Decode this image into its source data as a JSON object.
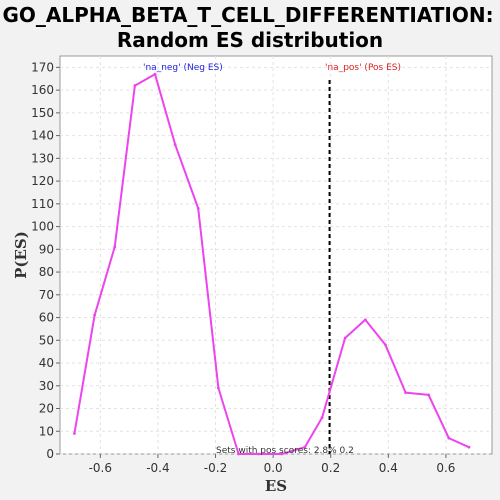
{
  "chart_data": {
    "type": "line",
    "title": "GO_ALPHA_BETA_T_CELL_DIFFERENTIATION:",
    "subtitle": "Random ES distribution",
    "xlabel": "ES",
    "ylabel": "P(ES)",
    "xlim": [
      -0.74,
      0.76
    ],
    "ylim": [
      0,
      175
    ],
    "xticks": [
      -0.6,
      -0.4,
      -0.2,
      0.0,
      0.2,
      0.4,
      0.6
    ],
    "xtick_labels": [
      "-0.6",
      "-0.4",
      "-0.2",
      "0.0",
      "0.2",
      "0.4",
      "0.6"
    ],
    "yticks": [
      0,
      10,
      20,
      30,
      40,
      50,
      60,
      70,
      80,
      90,
      100,
      110,
      120,
      130,
      140,
      150,
      160,
      170
    ],
    "ytick_labels": [
      "0",
      "10",
      "20",
      "30",
      "40",
      "50",
      "60",
      "70",
      "80",
      "90",
      "100",
      "110",
      "120",
      "130",
      "140",
      "150",
      "160",
      "170"
    ],
    "grid": true,
    "series": [
      {
        "color": "#ee44ee",
        "x": [
          -0.69,
          -0.62,
          -0.55,
          -0.48,
          -0.41,
          -0.34,
          -0.26,
          -0.19,
          -0.12,
          -0.05,
          0.03,
          0.11,
          0.17,
          0.25,
          0.32,
          0.39,
          0.46,
          0.54,
          0.61,
          0.68
        ],
        "y": [
          9,
          61,
          91,
          162,
          167,
          136,
          108,
          29,
          0,
          0,
          0,
          3,
          16,
          51,
          59,
          48,
          27,
          26,
          7,
          3
        ]
      }
    ],
    "vline": {
      "x": 0.196,
      "style": "dashed",
      "color": "#000000"
    },
    "annotations": [
      {
        "text": "'na_neg' (Neg ES)",
        "color": "#2222dd"
      },
      {
        "text": "'na_pos' (Pos ES)",
        "color": "#dd2222"
      },
      {
        "text": "Sets with pos scores: 2.8% 0.2",
        "color": "#333333"
      }
    ]
  }
}
